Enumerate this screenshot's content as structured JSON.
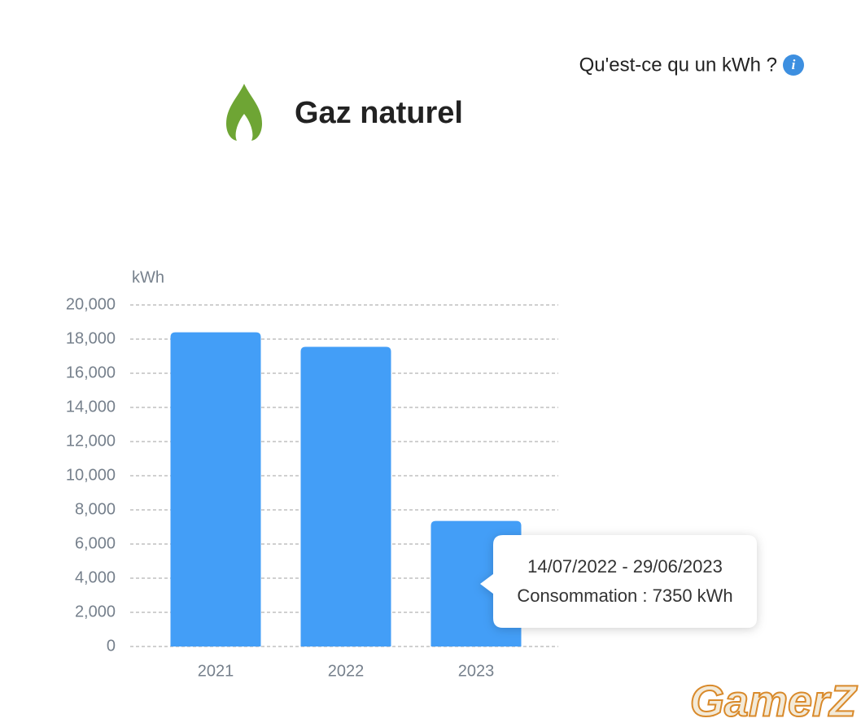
{
  "header": {
    "help_link": "Qu'est-ce qu un kWh ?",
    "title": "Gaz naturel"
  },
  "chart_data": {
    "type": "bar",
    "y_axis_label": "kWh",
    "categories": [
      "2021",
      "2022",
      "2023"
    ],
    "values": [
      18400,
      17550,
      7350
    ],
    "color": "#439ef7",
    "ylim": [
      0,
      20000
    ],
    "yticks": [
      0,
      {
        "value": 2000,
        "label": "2,000"
      },
      {
        "value": 4000,
        "label": "4,000"
      },
      {
        "value": 6000,
        "label": "6,000"
      },
      {
        "value": 8000,
        "label": "8,000"
      },
      {
        "value": 10000,
        "label": "10,000"
      },
      {
        "value": 12000,
        "label": "12,000"
      },
      {
        "value": 14000,
        "label": "14,000"
      },
      {
        "value": 16000,
        "label": "16,000"
      },
      {
        "value": 18000,
        "label": "18,000"
      },
      {
        "value": 20000,
        "label": "20,000"
      }
    ],
    "grid": true
  },
  "tooltip": {
    "period": "14/07/2022 - 29/06/2023",
    "text": "Consommation : 7350 kWh"
  },
  "watermark": "GamerZ"
}
